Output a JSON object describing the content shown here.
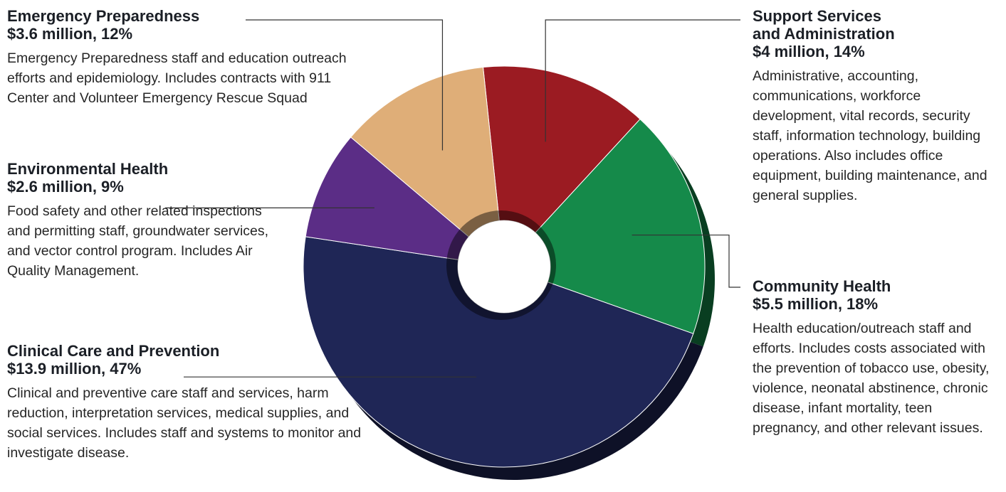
{
  "chart_data": {
    "type": "pie",
    "donut": true,
    "slices": [
      {
        "key": "ss",
        "name": "Support Services\nand Administration",
        "amount_label": "$4 million, 14%",
        "value": 4,
        "percent": 14,
        "color": "#9b1b22",
        "description": "Administrative, accounting, communications, workforce development, vital records, security staff, information technology, building operations. Also includes office equipment, building maintenance, and general supplies."
      },
      {
        "key": "ch",
        "name": "Community Health",
        "amount_label": "$5.5 million, 18%",
        "value": 5.5,
        "percent": 18,
        "color": "#158a4a",
        "description": "Health education/outreach staff and efforts. Includes costs associated with the prevention of tobacco use, obesity, violence, neonatal abstinence, chronic disease, infant mortality, teen pregnancy, and other relevant issues."
      },
      {
        "key": "cc",
        "name": "Clinical Care and Prevention",
        "amount_label": "$13.9 million, 47%",
        "value": 13.9,
        "percent": 47,
        "color": "#1f2656",
        "description": "Clinical and preventive care staff and services, harm reduction, interpretation services, medical supplies, and social services. Includes staff and systems to monitor and investigate disease."
      },
      {
        "key": "env",
        "name": "Environmental Health",
        "amount_label": "$2.6 million, 9%",
        "value": 2.6,
        "percent": 9,
        "color": "#5b2d86",
        "description": "Food safety and other related inspections and permitting staff, groundwater services, and vector control program. Includes Air Quality Management."
      },
      {
        "key": "ep",
        "name": "Emergency Preparedness",
        "amount_label": "$3.6 million, 12%",
        "value": 3.6,
        "percent": 12,
        "color": "#dfae78",
        "description": "Emergency Preparedness staff and education outreach efforts and epidemiology. Includes contracts with 911 Center and Volunteer Emergency Rescue Squad"
      }
    ]
  }
}
